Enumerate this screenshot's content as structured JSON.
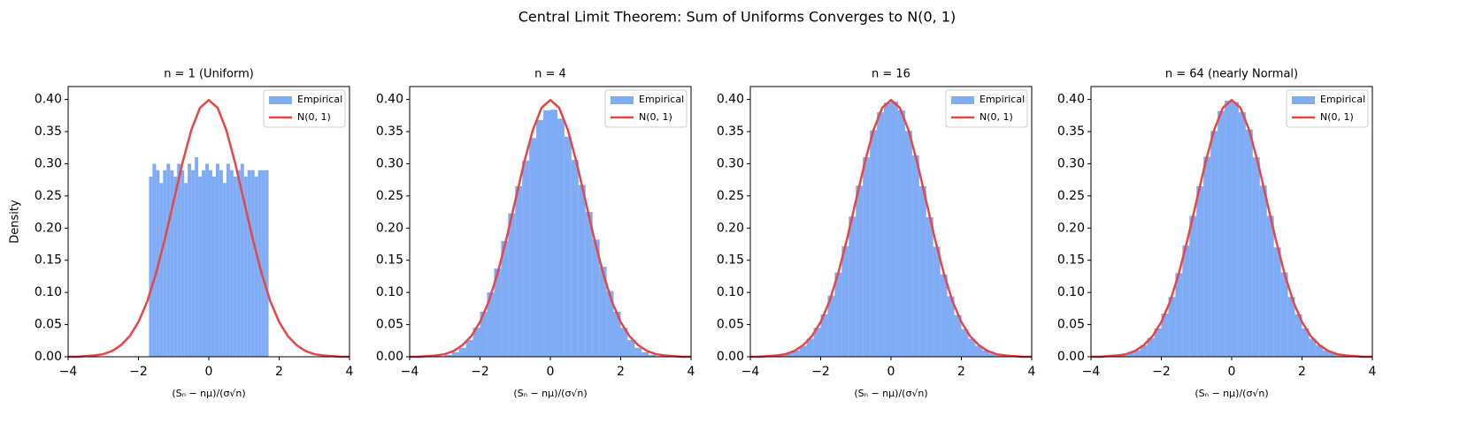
{
  "title": "Central Limit Theorem: Sum of Uniforms Converges to N(0, 1)",
  "chart_data": [
    {
      "type": "histogram",
      "title": "n = 1 (Uniform)",
      "x_label": "(Sₙ − nμ)/(σ√n)",
      "y_label": "Density",
      "legend": "upper right",
      "xlim": [
        -4,
        4
      ],
      "ylim": [
        0,
        0.42
      ],
      "xticks": [
        {
          "value": -4,
          "label": "−4"
        },
        {
          "value": -2,
          "label": "−2"
        },
        0,
        2,
        4
      ],
      "yticks": [
        {
          "value": 0,
          "label": "0.00"
        },
        {
          "value": 0.05,
          "label": "0.05"
        },
        {
          "value": 0.1,
          "label": "0.10"
        },
        {
          "value": 0.15,
          "label": "0.15"
        },
        {
          "value": 0.2,
          "label": "0.20"
        },
        {
          "value": 0.25,
          "label": "0.25"
        },
        {
          "value": 0.3,
          "label": "0.30"
        },
        {
          "value": 0.35,
          "label": "0.35"
        },
        {
          "value": 0.4,
          "label": "0.40"
        }
      ],
      "series": [
        {
          "name": "Empirical",
          "color": "#7facf5",
          "bins": [
            -1.7,
            -1.6,
            -1.5,
            -1.4,
            -1.3,
            -1.2,
            -1.1,
            -1.0,
            -0.9,
            -0.8,
            -0.7,
            -0.6,
            -0.5,
            -0.4,
            -0.3,
            -0.2,
            -0.1,
            0,
            0.1,
            0.2,
            0.3,
            0.4,
            0.5,
            0.6,
            0.7,
            0.8,
            0.9,
            1.0,
            1.1,
            1.2,
            1.3,
            1.4,
            1.5,
            1.6,
            1.7
          ],
          "values": [
            0.28,
            0.3,
            0.29,
            0.27,
            0.29,
            0.3,
            0.29,
            0.28,
            0.3,
            0.29,
            0.27,
            0.3,
            0.29,
            0.31,
            0.28,
            0.29,
            0.3,
            0.29,
            0.28,
            0.3,
            0.29,
            0.27,
            0.3,
            0.29,
            0.28,
            0.29,
            0.3,
            0.28,
            0.29,
            0.29,
            0.28,
            0.29,
            0.29,
            0.29
          ]
        },
        {
          "name": "N(0, 1)",
          "color": "#e84545",
          "x": [
            -4,
            -3.75,
            -3.5,
            -3.25,
            -3,
            -2.75,
            -2.5,
            -2.25,
            -2,
            -1.75,
            -1.5,
            -1.25,
            -1,
            -0.75,
            -0.5,
            -0.25,
            0,
            0.25,
            0.5,
            0.75,
            1,
            1.25,
            1.5,
            1.75,
            2,
            2.25,
            2.5,
            2.75,
            3,
            3.25,
            3.5,
            3.75,
            4
          ],
          "values": [
            0,
            0,
            0.001,
            0.002,
            0.004,
            0.009,
            0.018,
            0.032,
            0.054,
            0.086,
            0.13,
            0.183,
            0.242,
            0.301,
            0.352,
            0.387,
            0.399,
            0.387,
            0.352,
            0.301,
            0.242,
            0.183,
            0.13,
            0.086,
            0.054,
            0.032,
            0.018,
            0.009,
            0.004,
            0.002,
            0.001,
            0,
            0
          ]
        }
      ]
    },
    {
      "type": "histogram",
      "title": "n = 4",
      "x_label": "(Sₙ − nμ)/(σ√n)",
      "legend": "upper right",
      "xlim": [
        -4,
        4
      ],
      "ylim": [
        0,
        0.42
      ],
      "xticks": [
        {
          "value": -4,
          "label": "−4"
        },
        {
          "value": -2,
          "label": "−2"
        },
        0,
        2,
        4
      ],
      "yticks": [
        {
          "value": 0,
          "label": "0.00"
        },
        {
          "value": 0.05,
          "label": "0.05"
        },
        {
          "value": 0.1,
          "label": "0.10"
        },
        {
          "value": 0.15,
          "label": "0.15"
        },
        {
          "value": 0.2,
          "label": "0.20"
        },
        {
          "value": 0.25,
          "label": "0.25"
        },
        {
          "value": 0.3,
          "label": "0.30"
        },
        {
          "value": 0.35,
          "label": "0.35"
        },
        {
          "value": 0.4,
          "label": "0.40"
        }
      ],
      "series": [
        {
          "name": "Empirical",
          "color": "#7facf5",
          "bins": [
            -3.6,
            -3.4,
            -3.2,
            -3.0,
            -2.8,
            -2.6,
            -2.4,
            -2.2,
            -2.0,
            -1.8,
            -1.6,
            -1.4,
            -1.2,
            -1.0,
            -0.8,
            -0.6,
            -0.4,
            -0.2,
            0,
            0.2,
            0.4,
            0.6,
            0.8,
            1.0,
            1.2,
            1.4,
            1.6,
            1.8,
            2.0,
            2.2,
            2.4,
            2.6,
            2.8,
            3.0,
            3.2,
            3.4,
            3.6
          ],
          "values": [
            0,
            0,
            0.001,
            0.003,
            0.007,
            0.014,
            0.026,
            0.045,
            0.07,
            0.1,
            0.137,
            0.18,
            0.223,
            0.265,
            0.305,
            0.34,
            0.368,
            0.383,
            0.384,
            0.37,
            0.342,
            0.306,
            0.267,
            0.225,
            0.182,
            0.14,
            0.102,
            0.07,
            0.045,
            0.026,
            0.014,
            0.007,
            0.003,
            0.001,
            0,
            0
          ]
        },
        {
          "name": "N(0, 1)",
          "color": "#e84545",
          "x": [
            -4,
            -3.75,
            -3.5,
            -3.25,
            -3,
            -2.75,
            -2.5,
            -2.25,
            -2,
            -1.75,
            -1.5,
            -1.25,
            -1,
            -0.75,
            -0.5,
            -0.25,
            0,
            0.25,
            0.5,
            0.75,
            1,
            1.25,
            1.5,
            1.75,
            2,
            2.25,
            2.5,
            2.75,
            3,
            3.25,
            3.5,
            3.75,
            4
          ],
          "values": [
            0,
            0,
            0.001,
            0.002,
            0.004,
            0.009,
            0.018,
            0.032,
            0.054,
            0.086,
            0.13,
            0.183,
            0.242,
            0.301,
            0.352,
            0.387,
            0.399,
            0.387,
            0.352,
            0.301,
            0.242,
            0.183,
            0.13,
            0.086,
            0.054,
            0.032,
            0.018,
            0.009,
            0.004,
            0.002,
            0.001,
            0,
            0
          ]
        }
      ]
    },
    {
      "type": "histogram",
      "title": "n = 16",
      "x_label": "(Sₙ − nμ)/(σ√n)",
      "legend": "upper right",
      "xlim": [
        -4,
        4
      ],
      "ylim": [
        0,
        0.42
      ],
      "xticks": [
        {
          "value": -4,
          "label": "−4"
        },
        {
          "value": -2,
          "label": "−2"
        },
        0,
        2,
        4
      ],
      "yticks": [
        {
          "value": 0,
          "label": "0.00"
        },
        {
          "value": 0.05,
          "label": "0.05"
        },
        {
          "value": 0.1,
          "label": "0.10"
        },
        {
          "value": 0.15,
          "label": "0.15"
        },
        {
          "value": 0.2,
          "label": "0.20"
        },
        {
          "value": 0.25,
          "label": "0.25"
        },
        {
          "value": 0.3,
          "label": "0.30"
        },
        {
          "value": 0.35,
          "label": "0.35"
        },
        {
          "value": 0.4,
          "label": "0.40"
        }
      ],
      "series": [
        {
          "name": "Empirical",
          "color": "#7facf5",
          "bins": [
            -3.6,
            -3.4,
            -3.2,
            -3.0,
            -2.8,
            -2.6,
            -2.4,
            -2.2,
            -2.0,
            -1.8,
            -1.6,
            -1.4,
            -1.2,
            -1.0,
            -0.8,
            -0.6,
            -0.4,
            -0.2,
            0,
            0.2,
            0.4,
            0.6,
            0.8,
            1.0,
            1.2,
            1.4,
            1.6,
            1.8,
            2.0,
            2.2,
            2.4,
            2.6,
            2.8,
            3.0,
            3.2,
            3.4,
            3.6
          ],
          "values": [
            0.001,
            0.002,
            0.003,
            0.006,
            0.01,
            0.017,
            0.028,
            0.045,
            0.066,
            0.095,
            0.131,
            0.172,
            0.218,
            0.266,
            0.31,
            0.352,
            0.38,
            0.395,
            0.397,
            0.383,
            0.351,
            0.313,
            0.265,
            0.217,
            0.171,
            0.128,
            0.094,
            0.065,
            0.043,
            0.028,
            0.017,
            0.01,
            0.005,
            0.003,
            0.001,
            0.001
          ]
        },
        {
          "name": "N(0, 1)",
          "color": "#e84545",
          "x": [
            -4,
            -3.75,
            -3.5,
            -3.25,
            -3,
            -2.75,
            -2.5,
            -2.25,
            -2,
            -1.75,
            -1.5,
            -1.25,
            -1,
            -0.75,
            -0.5,
            -0.25,
            0,
            0.25,
            0.5,
            0.75,
            1,
            1.25,
            1.5,
            1.75,
            2,
            2.25,
            2.5,
            2.75,
            3,
            3.25,
            3.5,
            3.75,
            4
          ],
          "values": [
            0,
            0,
            0.001,
            0.002,
            0.004,
            0.009,
            0.018,
            0.032,
            0.054,
            0.086,
            0.13,
            0.183,
            0.242,
            0.301,
            0.352,
            0.387,
            0.399,
            0.387,
            0.352,
            0.301,
            0.242,
            0.183,
            0.13,
            0.086,
            0.054,
            0.032,
            0.018,
            0.009,
            0.004,
            0.002,
            0.001,
            0,
            0
          ]
        }
      ]
    },
    {
      "type": "histogram",
      "title": "n = 64 (nearly Normal)",
      "x_label": "(Sₙ − nμ)/(σ√n)",
      "legend": "upper right",
      "xlim": [
        -4,
        4
      ],
      "ylim": [
        0,
        0.42
      ],
      "xticks": [
        {
          "value": -4,
          "label": "−4"
        },
        {
          "value": -2,
          "label": "−2"
        },
        0,
        2,
        4
      ],
      "yticks": [
        {
          "value": 0,
          "label": "0.00"
        },
        {
          "value": 0.05,
          "label": "0.05"
        },
        {
          "value": 0.1,
          "label": "0.10"
        },
        {
          "value": 0.15,
          "label": "0.15"
        },
        {
          "value": 0.2,
          "label": "0.20"
        },
        {
          "value": 0.25,
          "label": "0.25"
        },
        {
          "value": 0.3,
          "label": "0.30"
        },
        {
          "value": 0.35,
          "label": "0.35"
        },
        {
          "value": 0.4,
          "label": "0.40"
        }
      ],
      "series": [
        {
          "name": "Empirical",
          "color": "#7facf5",
          "bins": [
            -3.6,
            -3.4,
            -3.2,
            -3.0,
            -2.8,
            -2.6,
            -2.4,
            -2.2,
            -2.0,
            -1.8,
            -1.6,
            -1.4,
            -1.2,
            -1.0,
            -0.8,
            -0.6,
            -0.4,
            -0.2,
            0,
            0.2,
            0.4,
            0.6,
            0.8,
            1.0,
            1.2,
            1.4,
            1.6,
            1.8,
            2.0,
            2.2,
            2.4,
            2.6,
            2.8,
            3.0,
            3.2,
            3.4,
            3.6
          ],
          "values": [
            0.001,
            0.002,
            0.003,
            0.006,
            0.01,
            0.018,
            0.029,
            0.044,
            0.067,
            0.093,
            0.13,
            0.173,
            0.219,
            0.265,
            0.311,
            0.351,
            0.382,
            0.398,
            0.396,
            0.38,
            0.353,
            0.31,
            0.266,
            0.219,
            0.17,
            0.131,
            0.093,
            0.066,
            0.044,
            0.028,
            0.018,
            0.01,
            0.006,
            0.003,
            0.002,
            0.001
          ]
        },
        {
          "name": "N(0, 1)",
          "color": "#e84545",
          "x": [
            -4,
            -3.75,
            -3.5,
            -3.25,
            -3,
            -2.75,
            -2.5,
            -2.25,
            -2,
            -1.75,
            -1.5,
            -1.25,
            -1,
            -0.75,
            -0.5,
            -0.25,
            0,
            0.25,
            0.5,
            0.75,
            1,
            1.25,
            1.5,
            1.75,
            2,
            2.25,
            2.5,
            2.75,
            3,
            3.25,
            3.5,
            3.75,
            4
          ],
          "values": [
            0,
            0,
            0.001,
            0.002,
            0.004,
            0.009,
            0.018,
            0.032,
            0.054,
            0.086,
            0.13,
            0.183,
            0.242,
            0.301,
            0.352,
            0.387,
            0.399,
            0.387,
            0.352,
            0.301,
            0.242,
            0.183,
            0.13,
            0.086,
            0.054,
            0.032,
            0.018,
            0.009,
            0.004,
            0.002,
            0.001,
            0,
            0
          ]
        }
      ]
    }
  ]
}
